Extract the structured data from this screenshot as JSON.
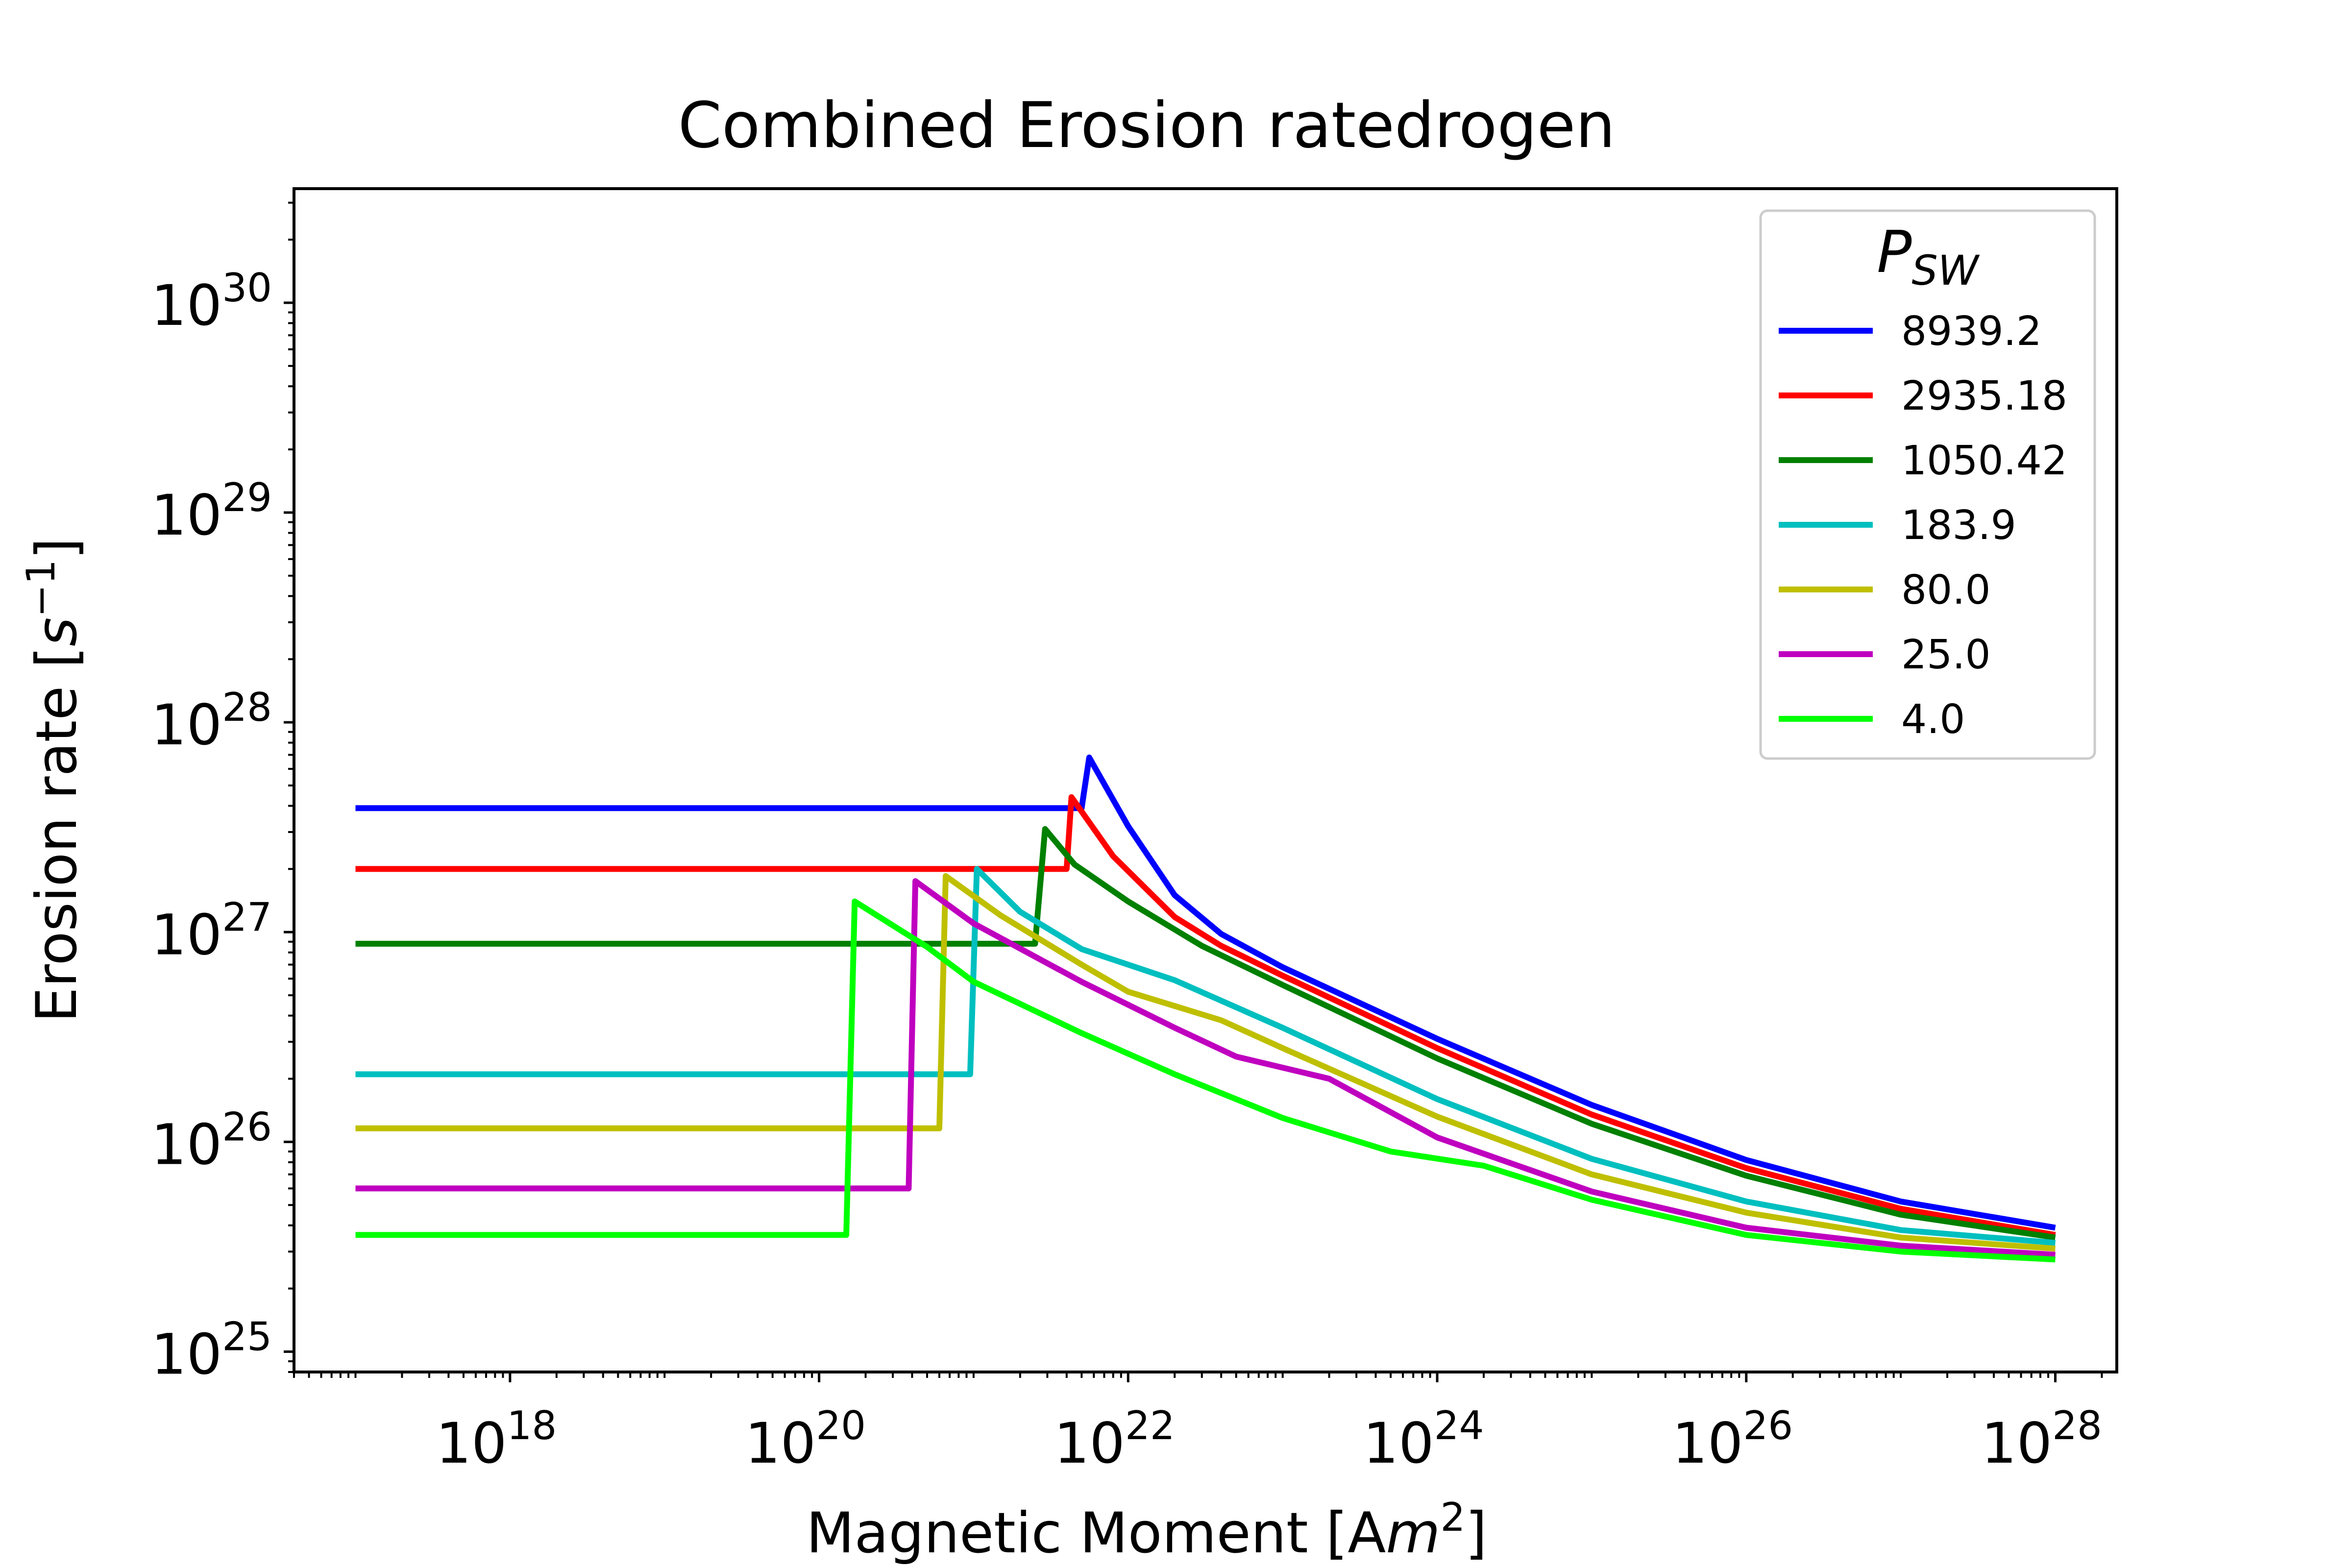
{
  "chart_data": {
    "type": "line",
    "title": "Combined Erosion ratedrogen",
    "xlabel": {
      "text": "Magnetic Moment [A",
      "italic": "m",
      "sup": "2",
      "close": "]"
    },
    "ylabel": {
      "text": "Erosion rate [",
      "italic": "s",
      "sup": "−1",
      "close": "]"
    },
    "xscale": "log",
    "yscale": "log",
    "xlim": [
      4e+16,
      2.5e+28
    ],
    "ylim": [
      8e+24,
      3.5e+30
    ],
    "xticks": [
      {
        "value": 1e+18,
        "base": "10",
        "exp": "18"
      },
      {
        "value": 1e+20,
        "base": "10",
        "exp": "20"
      },
      {
        "value": 1e+22,
        "base": "10",
        "exp": "22"
      },
      {
        "value": 1e+24,
        "base": "10",
        "exp": "24"
      },
      {
        "value": 1e+26,
        "base": "10",
        "exp": "26"
      },
      {
        "value": 1e+28,
        "base": "10",
        "exp": "28"
      }
    ],
    "yticks": [
      {
        "value": 1e+25,
        "base": "10",
        "exp": "25"
      },
      {
        "value": 1e+26,
        "base": "10",
        "exp": "26"
      },
      {
        "value": 1e+27,
        "base": "10",
        "exp": "27"
      },
      {
        "value": 1e+28,
        "base": "10",
        "exp": "28"
      },
      {
        "value": 1e+29,
        "base": "10",
        "exp": "29"
      },
      {
        "value": 1e+30,
        "base": "10",
        "exp": "30"
      }
    ],
    "grid": false,
    "legend": {
      "placement": "top-right",
      "title": "P",
      "title_sub": "SW"
    },
    "series": [
      {
        "name": "8939.2",
        "color": "#0000ff",
        "points": [
          [
            1e+17,
            3.9e+27
          ],
          [
            5e+21,
            3.9e+27
          ],
          [
            5.6e+21,
            6.8e+27
          ],
          [
            1e+22,
            3.2e+27
          ],
          [
            2e+22,
            1.5e+27
          ],
          [
            4e+22,
            9.8e+26
          ],
          [
            1e+23,
            6.8e+26
          ],
          [
            1e+24,
            3.1e+26
          ],
          [
            1e+25,
            1.5e+26
          ],
          [
            1e+26,
            8.2e+25
          ],
          [
            1e+27,
            5.2e+25
          ],
          [
            1e+28,
            3.9e+25
          ]
        ]
      },
      {
        "name": "2935.18",
        "color": "#ff0000",
        "points": [
          [
            1e+17,
            2e+27
          ],
          [
            4e+21,
            2e+27
          ],
          [
            4.3e+21,
            4.4e+27
          ],
          [
            8e+21,
            2.3e+27
          ],
          [
            2e+22,
            1.18e+27
          ],
          [
            4e+22,
            8.6e+26
          ],
          [
            1e+23,
            6.2e+26
          ],
          [
            1e+24,
            2.8e+26
          ],
          [
            1e+25,
            1.35e+26
          ],
          [
            1e+26,
            7.5e+25
          ],
          [
            1e+27,
            4.8e+25
          ],
          [
            1e+28,
            3.6e+25
          ]
        ]
      },
      {
        "name": "1050.42",
        "color": "#008000",
        "points": [
          [
            1e+17,
            8.8e+26
          ],
          [
            2.5e+21,
            8.8e+26
          ],
          [
            2.9e+21,
            3.1e+27
          ],
          [
            4.5e+21,
            2.1e+27
          ],
          [
            1e+22,
            1.4e+27
          ],
          [
            3e+22,
            8.6e+26
          ],
          [
            1e+23,
            5.6e+26
          ],
          [
            1e+24,
            2.5e+26
          ],
          [
            1e+25,
            1.22e+26
          ],
          [
            1e+26,
            6.9e+25
          ],
          [
            1e+27,
            4.5e+25
          ],
          [
            1e+28,
            3.5e+25
          ]
        ]
      },
      {
        "name": "183.9",
        "color": "#00bfbf",
        "points": [
          [
            1e+17,
            2.1e+26
          ],
          [
            9.5e+20,
            2.1e+26
          ],
          [
            1.05e+21,
            2e+27
          ],
          [
            2e+21,
            1.25e+27
          ],
          [
            5e+21,
            8.3e+26
          ],
          [
            2e+22,
            5.9e+26
          ],
          [
            1e+23,
            3.5e+26
          ],
          [
            1e+24,
            1.6e+26
          ],
          [
            1e+25,
            8.3e+25
          ],
          [
            1e+26,
            5.2e+25
          ],
          [
            1e+27,
            3.8e+25
          ],
          [
            1e+28,
            3.3e+25
          ]
        ]
      },
      {
        "name": "80.0",
        "color": "#bfbf00",
        "points": [
          [
            1e+17,
            1.16e+26
          ],
          [
            6e+20,
            1.16e+26
          ],
          [
            6.6e+20,
            1.85e+27
          ],
          [
            1.5e+21,
            1.2e+27
          ],
          [
            5e+21,
            7e+26
          ],
          [
            1e+22,
            5.2e+26
          ],
          [
            4e+22,
            3.8e+26
          ],
          [
            1e+23,
            2.8e+26
          ],
          [
            1e+24,
            1.32e+26
          ],
          [
            1e+25,
            7e+25
          ],
          [
            1e+26,
            4.6e+25
          ],
          [
            1e+27,
            3.5e+25
          ],
          [
            1e+28,
            3.1e+25
          ]
        ]
      },
      {
        "name": "25.0",
        "color": "#bf00bf",
        "points": [
          [
            1e+17,
            6e+25
          ],
          [
            3.8e+20,
            6e+25
          ],
          [
            4.2e+20,
            1.75e+27
          ],
          [
            1e+21,
            1.1e+27
          ],
          [
            5e+21,
            5.8e+26
          ],
          [
            2e+22,
            3.5e+26
          ],
          [
            5e+22,
            2.55e+26
          ],
          [
            2e+23,
            2e+26
          ],
          [
            1e+24,
            1.05e+26
          ],
          [
            1e+25,
            5.8e+25
          ],
          [
            1e+26,
            3.9e+25
          ],
          [
            1e+27,
            3.2e+25
          ],
          [
            1e+28,
            2.9e+25
          ]
        ]
      },
      {
        "name": "4.0",
        "color": "#00ff00",
        "points": [
          [
            1e+17,
            3.6e+25
          ],
          [
            1.5e+20,
            3.6e+25
          ],
          [
            1.7e+20,
            1.4e+27
          ],
          [
            5e+20,
            8.5e+26
          ],
          [
            1e+21,
            5.8e+26
          ],
          [
            5e+21,
            3.3e+26
          ],
          [
            2e+22,
            2.1e+26
          ],
          [
            1e+23,
            1.3e+26
          ],
          [
            5e+23,
            9e+25
          ],
          [
            2e+24,
            7.7e+25
          ],
          [
            1e+25,
            5.3e+25
          ],
          [
            1e+26,
            3.6e+25
          ],
          [
            1e+27,
            3e+25
          ],
          [
            1e+28,
            2.75e+25
          ]
        ]
      }
    ]
  }
}
